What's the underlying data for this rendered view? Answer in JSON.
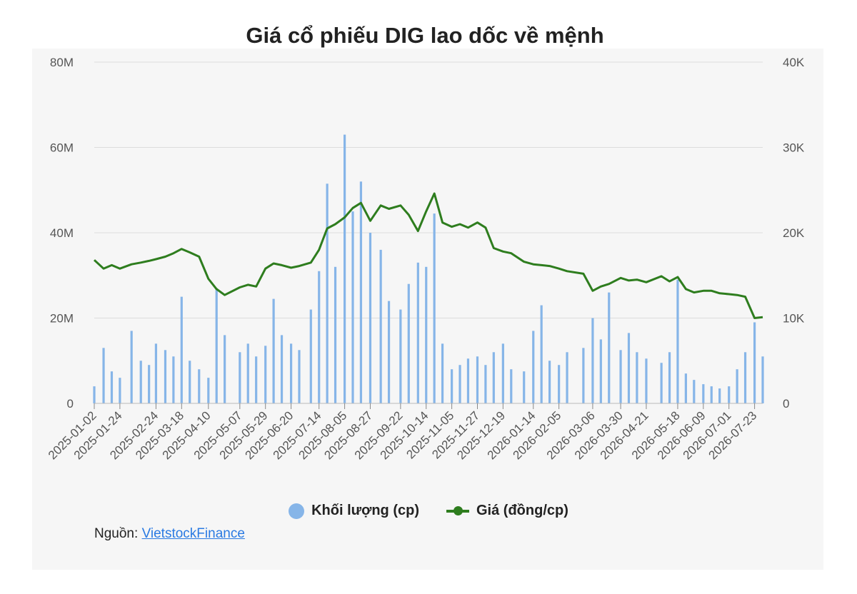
{
  "title": "Giá cổ phiếu DIG lao dốc về mệnh",
  "source": {
    "label": "Nguồn:",
    "link_text": "VietstockFinance"
  },
  "legend": {
    "volume": "Khối lượng (cp)",
    "price": "Giá (đồng/cp)"
  },
  "colors": {
    "volume": "#86b5e8",
    "price": "#2e7d1e",
    "grid": "#dddddd",
    "panel": "#f6f6f6"
  },
  "chart_data": {
    "type": "bar",
    "title": "Giá cổ phiếu DIG lao dốc về mệnh",
    "x_tick_labels": [
      "2025-01-02",
      "2025-01-24",
      "2025-02-24",
      "2025-03-18",
      "2025-04-10",
      "2025-05-07",
      "2025-05-29",
      "2025-06-20",
      "2025-07-14",
      "2025-08-05",
      "2025-08-27",
      "2025-09-22",
      "2025-10-14",
      "2025-11-05",
      "2025-11-27",
      "2025-12-19",
      "2026-01-14",
      "2026-02-05",
      "2026-03-06",
      "2026-03-30",
      "2026-04-21",
      "2026-05-18",
      "2026-06-09",
      "2026-07-01",
      "2026-07-23"
    ],
    "y_left": {
      "tick_labels": [
        "0",
        "20M",
        "40M",
        "60M",
        "80M"
      ],
      "ylim": [
        0,
        80000000
      ]
    },
    "y_right": {
      "tick_labels": [
        "0",
        "10K",
        "20K",
        "30K",
        "40K"
      ],
      "ylim": [
        0,
        40000
      ]
    },
    "grid": true,
    "legend_position": "bottom",
    "series": [
      {
        "name": "Khối lượng (cp)",
        "type": "bar",
        "axis": "left",
        "x": [
          "2025-01-02",
          "2025-01-10",
          "2025-01-17",
          "2025-01-24",
          "2025-02-03",
          "2025-02-11",
          "2025-02-18",
          "2025-02-24",
          "2025-03-04",
          "2025-03-11",
          "2025-03-18",
          "2025-03-25",
          "2025-04-02",
          "2025-04-10",
          "2025-04-17",
          "2025-04-24",
          "2025-05-07",
          "2025-05-14",
          "2025-05-21",
          "2025-05-29",
          "2025-06-05",
          "2025-06-12",
          "2025-06-20",
          "2025-06-27",
          "2025-07-07",
          "2025-07-14",
          "2025-07-21",
          "2025-07-28",
          "2025-08-05",
          "2025-08-12",
          "2025-08-19",
          "2025-08-27",
          "2025-09-05",
          "2025-09-12",
          "2025-09-22",
          "2025-09-29",
          "2025-10-07",
          "2025-10-14",
          "2025-10-21",
          "2025-10-28",
          "2025-11-05",
          "2025-11-12",
          "2025-11-19",
          "2025-11-27",
          "2025-12-04",
          "2025-12-11",
          "2025-12-19",
          "2025-12-26",
          "2026-01-06",
          "2026-01-14",
          "2026-01-21",
          "2026-01-28",
          "2026-02-05",
          "2026-02-12",
          "2026-02-26",
          "2026-03-06",
          "2026-03-13",
          "2026-03-20",
          "2026-03-30",
          "2026-04-06",
          "2026-04-13",
          "2026-04-21",
          "2026-05-04",
          "2026-05-11",
          "2026-05-18",
          "2026-05-25",
          "2026-06-01",
          "2026-06-09",
          "2026-06-16",
          "2026-06-23",
          "2026-07-01",
          "2026-07-08",
          "2026-07-15",
          "2026-07-23",
          "2026-07-30"
        ],
        "values": [
          4000000,
          13000000,
          7500000,
          6000000,
          17000000,
          10000000,
          9000000,
          14000000,
          12500000,
          11000000,
          25000000,
          10000000,
          8000000,
          6000000,
          27000000,
          16000000,
          12000000,
          14000000,
          11000000,
          13500000,
          24500000,
          16000000,
          14000000,
          12500000,
          22000000,
          31000000,
          51500000,
          32000000,
          63000000,
          45000000,
          52000000,
          40000000,
          36000000,
          24000000,
          22000000,
          28000000,
          33000000,
          32000000,
          44500000,
          14000000,
          8000000,
          9000000,
          10500000,
          11000000,
          9000000,
          12000000,
          14000000,
          8000000,
          7500000,
          17000000,
          23000000,
          10000000,
          9000000,
          12000000,
          13000000,
          20000000,
          15000000,
          26000000,
          12500000,
          16500000,
          12000000,
          10500000,
          9500000,
          12000000,
          29000000,
          7000000,
          5500000,
          4500000,
          4000000,
          3500000,
          4000000,
          8000000,
          12000000,
          19000000,
          11000000
        ]
      },
      {
        "name": "Giá (đồng/cp)",
        "type": "line",
        "axis": "right",
        "x": [
          "2025-01-02",
          "2025-01-10",
          "2025-01-17",
          "2025-01-24",
          "2025-02-03",
          "2025-02-11",
          "2025-02-18",
          "2025-02-24",
          "2025-03-04",
          "2025-03-11",
          "2025-03-18",
          "2025-03-25",
          "2025-04-02",
          "2025-04-10",
          "2025-04-17",
          "2025-04-24",
          "2025-05-07",
          "2025-05-14",
          "2025-05-21",
          "2025-05-29",
          "2025-06-05",
          "2025-06-12",
          "2025-06-20",
          "2025-06-27",
          "2025-07-07",
          "2025-07-14",
          "2025-07-21",
          "2025-07-28",
          "2025-08-05",
          "2025-08-12",
          "2025-08-19",
          "2025-08-27",
          "2025-09-05",
          "2025-09-12",
          "2025-09-22",
          "2025-09-29",
          "2025-10-07",
          "2025-10-14",
          "2025-10-21",
          "2025-10-28",
          "2025-11-05",
          "2025-11-12",
          "2025-11-19",
          "2025-11-27",
          "2025-12-04",
          "2025-12-11",
          "2025-12-19",
          "2025-12-26",
          "2026-01-06",
          "2026-01-14",
          "2026-01-21",
          "2026-01-28",
          "2026-02-05",
          "2026-02-12",
          "2026-02-26",
          "2026-03-06",
          "2026-03-13",
          "2026-03-20",
          "2026-03-30",
          "2026-04-06",
          "2026-04-13",
          "2026-04-21",
          "2026-05-04",
          "2026-05-11",
          "2026-05-18",
          "2026-05-25",
          "2026-06-01",
          "2026-06-09",
          "2026-06-16",
          "2026-06-23",
          "2026-07-01",
          "2026-07-08",
          "2026-07-15",
          "2026-07-23",
          "2026-07-30"
        ],
        "values": [
          16800,
          15800,
          16200,
          15800,
          16300,
          16500,
          16700,
          16900,
          17200,
          17600,
          18100,
          17700,
          17200,
          14600,
          13400,
          12700,
          13600,
          13900,
          13700,
          15800,
          16400,
          16200,
          15900,
          16100,
          16500,
          18000,
          20500,
          21000,
          21800,
          22900,
          23500,
          21400,
          23200,
          22800,
          23200,
          22100,
          20200,
          22500,
          24600,
          21200,
          20700,
          21000,
          20600,
          21200,
          20600,
          18200,
          17800,
          17600,
          16600,
          16300,
          16200,
          16100,
          15800,
          15500,
          15200,
          13200,
          13700,
          14000,
          14700,
          14400,
          14500,
          14200,
          14900,
          14300,
          14800,
          13400,
          13000,
          13200,
          13200,
          12900,
          12800,
          12700,
          12500,
          10000,
          10100
        ]
      }
    ]
  }
}
